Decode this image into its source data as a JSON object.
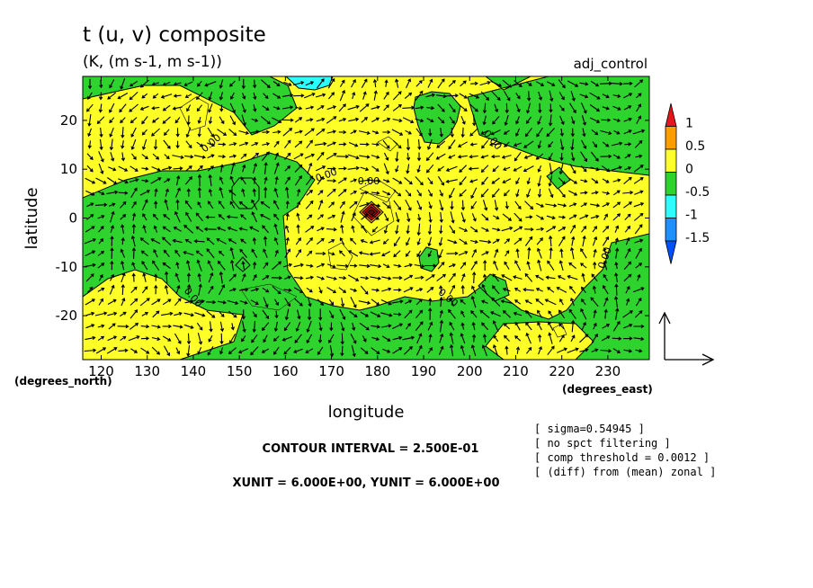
{
  "chart_data": {
    "type": "heatmap",
    "title": "t (u, v) composite",
    "subtitle": "(K, (m s-1, m s-1))",
    "experiment": "adj_control",
    "xlabel": "longitude",
    "ylabel": "latitude",
    "x_units": "(degrees_east)",
    "y_units": "(degrees_north)",
    "xlim": [
      116,
      239
    ],
    "ylim": [
      -29,
      29
    ],
    "x_ticks": [
      120,
      130,
      140,
      150,
      160,
      170,
      180,
      190,
      200,
      210,
      220,
      230
    ],
    "y_ticks": [
      20,
      10,
      0,
      -10,
      -20
    ],
    "colorbar": {
      "ticks": [
        "1",
        "0.5",
        "0",
        "-0.5",
        "-1",
        "-1.5"
      ],
      "bins": [
        {
          "range": [
            1,
            1.25
          ],
          "color": "#e8141c"
        },
        {
          "range": [
            0.5,
            1
          ],
          "color": "#ff9c00"
        },
        {
          "range": [
            0,
            0.5
          ],
          "color": "#ffff28"
        },
        {
          "range": [
            -0.5,
            0
          ],
          "color": "#2ed32e"
        },
        {
          "range": [
            -1,
            -0.5
          ],
          "color": "#2bffff"
        },
        {
          "range": [
            -1.5,
            -1
          ],
          "color": "#1e90ff"
        },
        {
          "range": [
            -1.75,
            -1.5
          ],
          "color": "#0050ff"
        }
      ]
    },
    "contour_labels": [
      "0.00",
      "0.00",
      "0.00",
      "0.00",
      "0.00",
      "0.00",
      "0.00"
    ],
    "contour_interval": "CONTOUR INTERVAL = 2.500E-01",
    "vector_units": "XUNIT = 6.000E+00, YUNIT = 6.000E+00",
    "notes": [
      "[ sigma=0.54945 ]",
      "[ no spct filtering ]",
      "[ comp threshold = 0.0012 ]",
      "[ (diff) from (mean) zonal ]"
    ],
    "grid": false,
    "legend_position": "right"
  }
}
